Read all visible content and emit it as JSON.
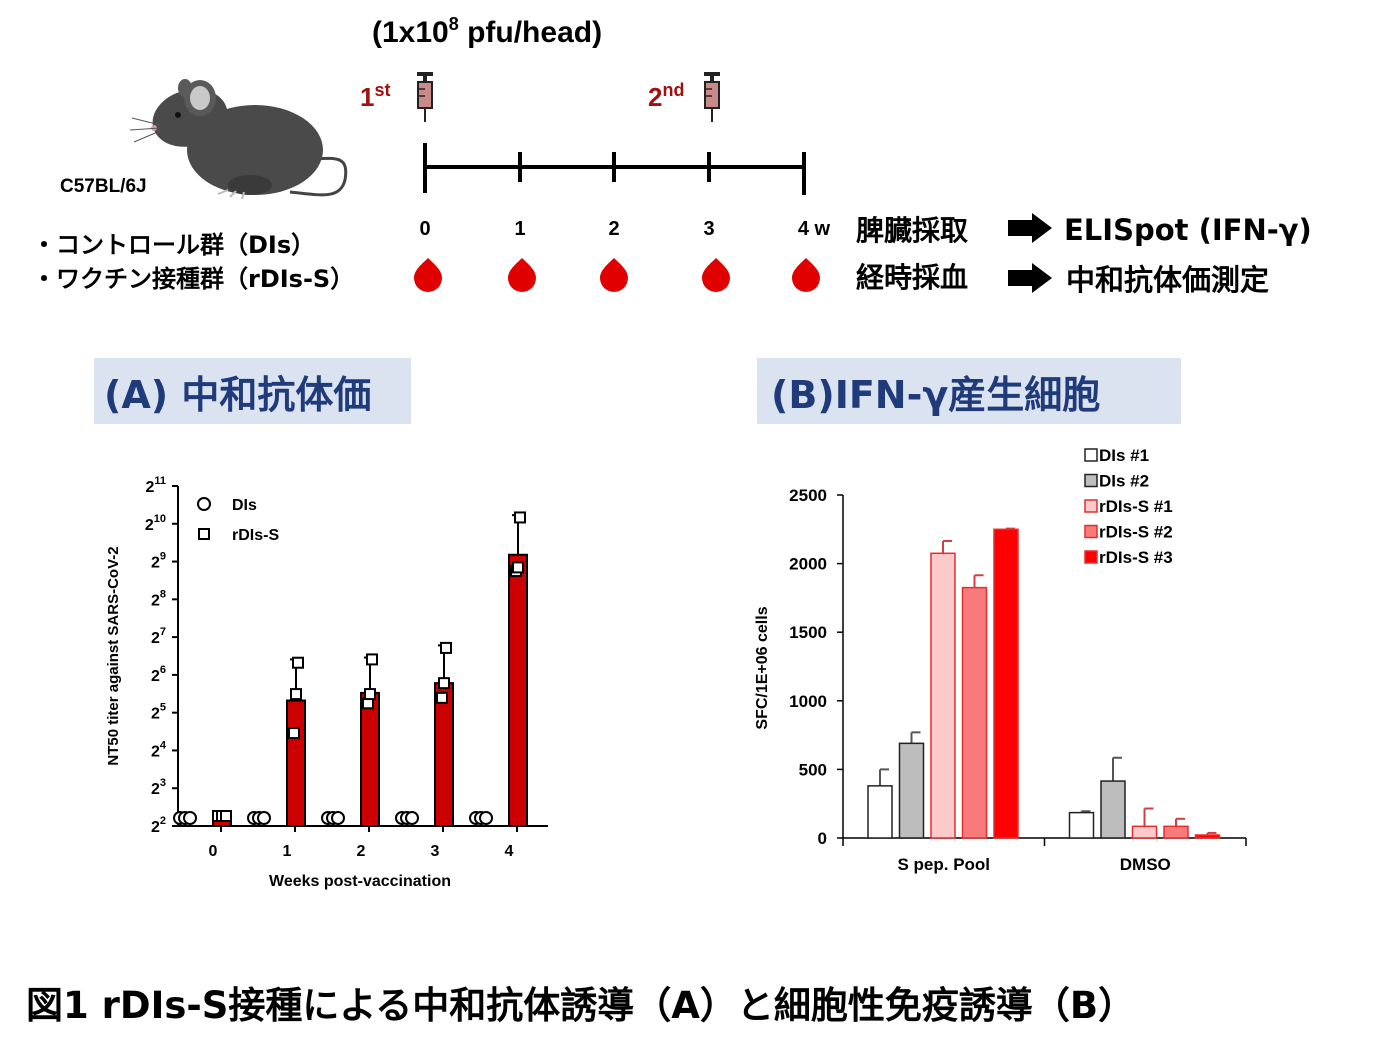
{
  "schedule": {
    "dose_label": "(1x10",
    "dose_exp": "8",
    "dose_unit": " pfu/head)",
    "first_label": "1",
    "first_sup": "st",
    "second_label": "2",
    "second_sup": "nd",
    "strain": "C57BL/6J",
    "weeks": [
      "0",
      "1",
      "2",
      "3",
      "4 w"
    ],
    "group_control": "・コントロール群（DIs）",
    "group_vaccine": "・ワクチン接種群（rDIs-S）",
    "step1_label": "脾臓採取",
    "step1_result": "ELISpot (IFN-γ)",
    "step2_label": "経時採血",
    "step2_result": "中和抗体価測定",
    "colors": {
      "blood": "#e00000",
      "dose_red": "#a01010",
      "syringe": "#c98a8a"
    }
  },
  "panel_a": {
    "title": "(A) 中和抗体価"
  },
  "panel_b": {
    "title": "(B)IFN-γ産生細胞"
  },
  "caption": "図1 rDIs-S接種による中和抗体誘導（A）と細胞性免疫誘導（B）",
  "chart_data": [
    {
      "type": "bar",
      "panel": "A",
      "xlabel": "Weeks post-vaccination",
      "ylabel": "NT50 titer against SARS-CoV-2",
      "y_scale": "log2",
      "ylim": [
        4,
        2048
      ],
      "y_ticks": [
        {
          "base": "2",
          "exp": "2"
        },
        {
          "base": "2",
          "exp": "3"
        },
        {
          "base": "2",
          "exp": "4"
        },
        {
          "base": "2",
          "exp": "5"
        },
        {
          "base": "2",
          "exp": "6"
        },
        {
          "base": "2",
          "exp": "7"
        },
        {
          "base": "2",
          "exp": "8"
        },
        {
          "base": "2",
          "exp": "9"
        },
        {
          "base": "2",
          "exp": "10"
        },
        {
          "base": "2",
          "exp": "11"
        }
      ],
      "categories": [
        "0",
        "1",
        "2",
        "3",
        "4"
      ],
      "legend": [
        {
          "name": "DIs",
          "marker": "circle"
        },
        {
          "name": "rDIs-S",
          "marker": "square"
        }
      ],
      "series": [
        {
          "name": "DIs",
          "color": "#ffffff",
          "values": [
            4,
            4,
            4,
            4,
            4
          ],
          "points": [
            [
              4,
              4,
              4
            ],
            [
              4,
              4,
              4
            ],
            [
              4,
              4,
              4
            ],
            [
              4,
              4,
              4
            ],
            [
              4,
              4,
              4
            ]
          ]
        },
        {
          "name": "rDIs-S",
          "color": "#cc0000",
          "values": [
            4,
            40,
            46,
            55,
            580
          ],
          "error_upper": [
            4,
            85,
            88,
            110,
            1200
          ],
          "points": [
            [
              4,
              4,
              4
            ],
            [
              22,
              45,
              80
            ],
            [
              38,
              45,
              85
            ],
            [
              42,
              55,
              105
            ],
            [
              430,
              460,
              1150
            ]
          ]
        }
      ],
      "grid": false
    },
    {
      "type": "bar",
      "panel": "B",
      "ylabel": "SFC/1E+06 cells",
      "ylim": [
        0,
        2500
      ],
      "y_ticks": [
        0,
        500,
        1000,
        1500,
        2000,
        2500
      ],
      "categories": [
        "S pep. Pool",
        "DMSO"
      ],
      "legend_position": "top-right",
      "series": [
        {
          "name": "DIs #1",
          "color": "#ffffff",
          "values": [
            380,
            185
          ],
          "error": [
            120,
            10
          ]
        },
        {
          "name": "DIs #2",
          "color": "#bdbdbd",
          "values": [
            690,
            415
          ],
          "error": [
            80,
            170
          ]
        },
        {
          "name": "rDIs-S #1",
          "color": "#fccaca",
          "values": [
            2075,
            85
          ],
          "error": [
            90,
            130
          ]
        },
        {
          "name": "rDIs-S #2",
          "color": "#f77b7b",
          "values": [
            1825,
            85
          ],
          "error": [
            90,
            55
          ]
        },
        {
          "name": "rDIs-S #3",
          "color": "#ff0000",
          "values": [
            2250,
            22
          ],
          "error": [
            5,
            15
          ]
        }
      ],
      "grid": false
    }
  ]
}
